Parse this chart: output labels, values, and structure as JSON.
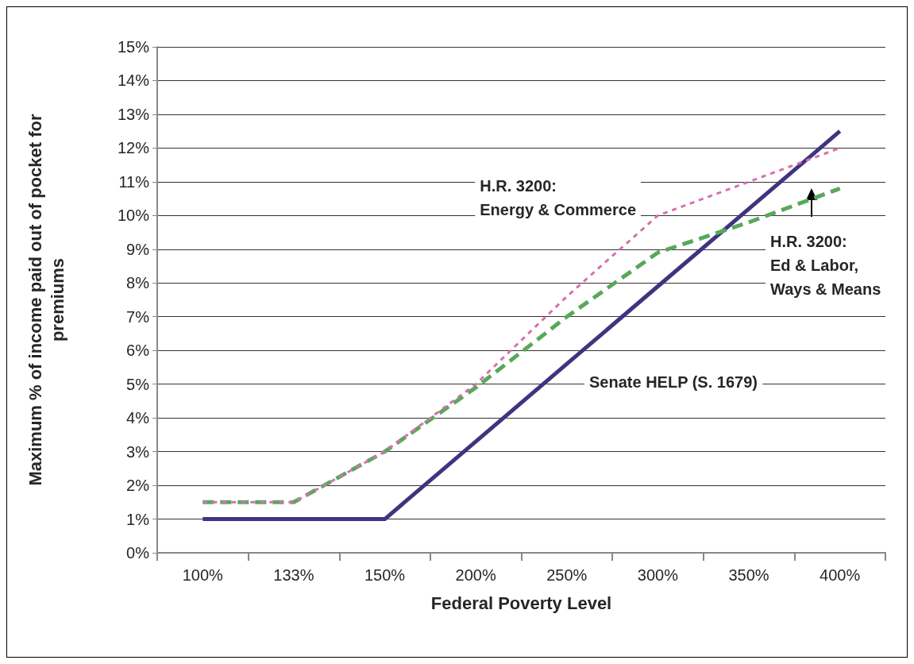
{
  "chart_data": {
    "type": "line",
    "xlabel": "Federal Poverty Level",
    "ylabel": "Maximum % of income paid out of pocket for\npremiums",
    "categories": [
      "100%",
      "133%",
      "150%",
      "200%",
      "250%",
      "300%",
      "350%",
      "400%"
    ],
    "series": [
      {
        "name": "Senate HELP (S. 1679)",
        "color": "#3f3480",
        "line_style": "solid",
        "values": [
          1,
          1,
          1,
          3.3,
          5.6,
          7.9,
          10.2,
          12.5
        ]
      },
      {
        "name": "H.R. 3200:\nEnergy & Commerce",
        "color": "#d670b0",
        "line_style": "dotted",
        "values": [
          1.5,
          1.5,
          3,
          5,
          7.6,
          10,
          11,
          12
        ]
      },
      {
        "name": "H.R. 3200:\nEd & Labor,\nWays & Means",
        "color": "#58a85c",
        "line_style": "dashed",
        "values": [
          1.5,
          1.5,
          3,
          4.9,
          7,
          8.9,
          9.8,
          10.8
        ]
      }
    ],
    "ylim": [
      0,
      15
    ],
    "yticks": [
      {
        "value": 0,
        "label": "0%"
      },
      {
        "value": 1,
        "label": "1%"
      },
      {
        "value": 2,
        "label": "2%"
      },
      {
        "value": 3,
        "label": "3%"
      },
      {
        "value": 4,
        "label": "4%"
      },
      {
        "value": 5,
        "label": "5%"
      },
      {
        "value": 6,
        "label": "6%"
      },
      {
        "value": 7,
        "label": "7%"
      },
      {
        "value": 8,
        "label": "8%"
      },
      {
        "value": 9,
        "label": "9%"
      },
      {
        "value": 10,
        "label": "10%"
      },
      {
        "value": 11,
        "label": "11%"
      },
      {
        "value": 12,
        "label": "12%"
      },
      {
        "value": 13,
        "label": "13%"
      },
      {
        "value": 14,
        "label": "14%"
      },
      {
        "value": 15,
        "label": "15%"
      }
    ],
    "grid": "y",
    "legend": false,
    "marker": "none"
  }
}
